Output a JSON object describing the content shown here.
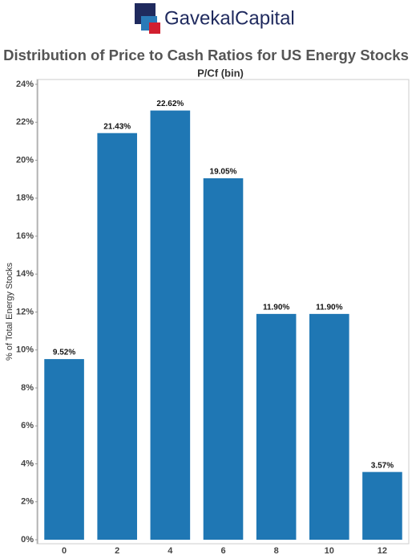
{
  "logo": "GavekalCapital",
  "chart_data": {
    "type": "bar",
    "title": "Distribution of Price to Cash Ratios for US Energy Stocks",
    "x_label": "P/Cf (bin)",
    "y_label": "% of Total Energy Stocks",
    "categories": [
      "0",
      "2",
      "4",
      "6",
      "8",
      "10",
      "12"
    ],
    "values": [
      9.52,
      21.43,
      22.62,
      19.05,
      11.9,
      11.9,
      3.57
    ],
    "value_labels": [
      "9.52%",
      "21.43%",
      "22.62%",
      "19.05%",
      "11.90%",
      "11.90%",
      "3.57%"
    ],
    "color": "#1f77b4",
    "ylim": [
      0,
      24
    ],
    "yticks": [
      {
        "value": 0,
        "label": "0%"
      },
      {
        "value": 2,
        "label": "2%"
      },
      {
        "value": 4,
        "label": "4%"
      },
      {
        "value": 6,
        "label": "6%"
      },
      {
        "value": 8,
        "label": "8%"
      },
      {
        "value": 10,
        "label": "10%"
      },
      {
        "value": 12,
        "label": "12%"
      },
      {
        "value": 14,
        "label": "14%"
      },
      {
        "value": 16,
        "label": "16%"
      },
      {
        "value": 18,
        "label": "18%"
      },
      {
        "value": 20,
        "label": "20%"
      },
      {
        "value": 22,
        "label": "22%"
      },
      {
        "value": 24,
        "label": "24%"
      }
    ],
    "grid": false
  }
}
